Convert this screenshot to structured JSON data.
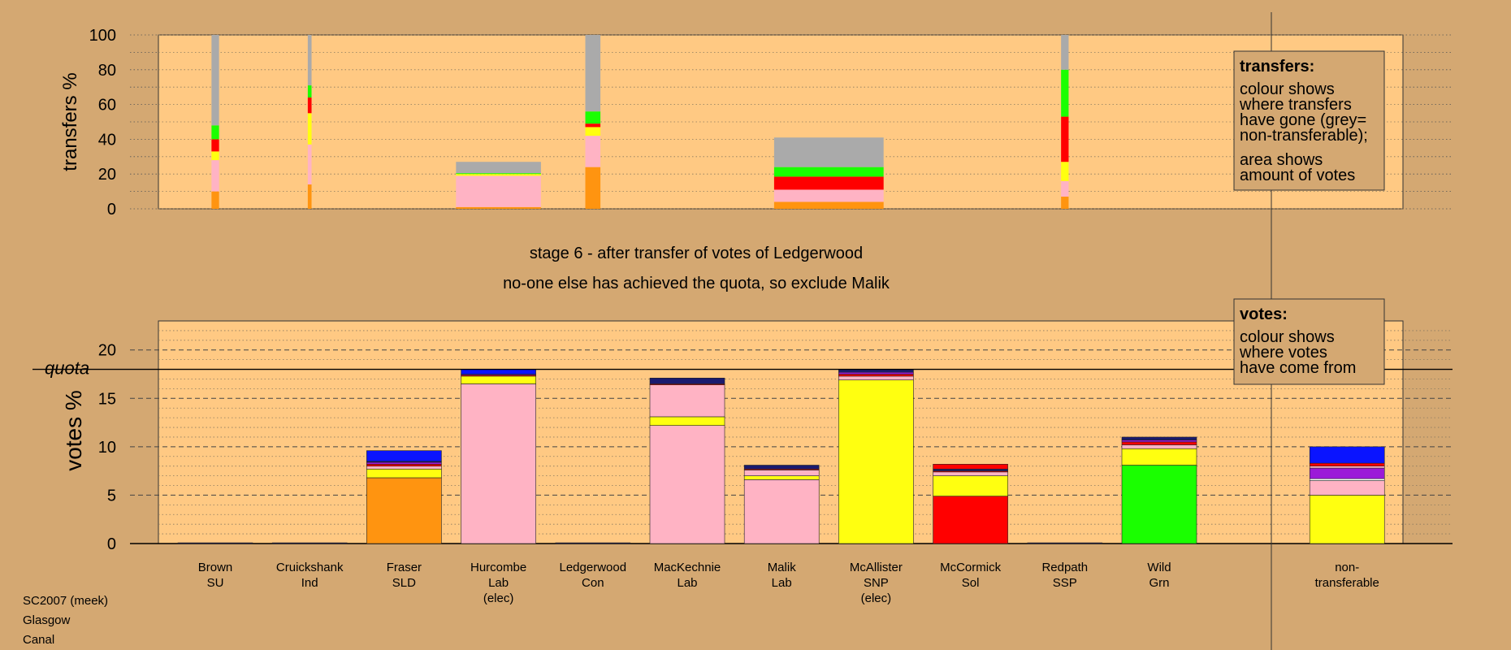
{
  "colors": {
    "background": "#d4a872",
    "panel": "#ffc983",
    "orange": "#ff9410",
    "pink": "#ffb3c4",
    "yellow": "#ffff10",
    "red": "#ff0000",
    "green": "#1aff00",
    "grey": "#aaaaaa",
    "navy": "#1a1a6e",
    "blue": "#0a14ff",
    "purple": "#9b1ad8",
    "white": "#ffffff"
  },
  "captions": {
    "stage": "stage 6 - after transfer of votes of Ledgerwood",
    "status": "no-one else has achieved the quota, so exclude Malik"
  },
  "legends": {
    "transfers": {
      "title": "transfers:",
      "line1": "colour shows",
      "line2": "where transfers",
      "line3": "have gone (grey=",
      "line4": "non-transferable);",
      "line5": "area shows",
      "line6": "amount of votes"
    },
    "votes": {
      "title": "votes:",
      "line1": "colour shows",
      "line2": "where votes",
      "line3": "have come from"
    }
  },
  "footer": [
    "SC2007 (meek)",
    "Glasgow",
    "Canal"
  ],
  "chart_data": [
    {
      "type": "bar",
      "ylabel": "transfers %",
      "ylim": [
        0,
        100
      ],
      "yticks": [
        0,
        20,
        40,
        60,
        80,
        100
      ],
      "grid": "dotted",
      "bars": [
        {
          "x": 1,
          "width": 0.08,
          "segments": [
            {
              "color": "orange",
              "value": 10
            },
            {
              "color": "pink",
              "value": 18
            },
            {
              "color": "yellow",
              "value": 5
            },
            {
              "color": "red",
              "value": 7
            },
            {
              "color": "green",
              "value": 8
            },
            {
              "color": "grey",
              "value": 52
            }
          ]
        },
        {
          "x": 2,
          "width": 0.04,
          "segments": [
            {
              "color": "orange",
              "value": 14
            },
            {
              "color": "pink",
              "value": 23
            },
            {
              "color": "yellow",
              "value": 18
            },
            {
              "color": "red",
              "value": 9
            },
            {
              "color": "green",
              "value": 7
            },
            {
              "color": "grey",
              "value": 29
            }
          ]
        },
        {
          "x": 4,
          "width": 0.9,
          "segments": [
            {
              "color": "orange",
              "value": 1
            },
            {
              "color": "pink",
              "value": 18
            },
            {
              "color": "yellow",
              "value": 1
            },
            {
              "color": "green",
              "value": 0.5
            },
            {
              "color": "grey",
              "value": 6.5
            }
          ]
        },
        {
          "x": 5,
          "width": 0.16,
          "segments": [
            {
              "color": "orange",
              "value": 24
            },
            {
              "color": "pink",
              "value": 18
            },
            {
              "color": "yellow",
              "value": 5
            },
            {
              "color": "red",
              "value": 2
            },
            {
              "color": "green",
              "value": 7
            },
            {
              "color": "grey",
              "value": 44
            }
          ]
        },
        {
          "x": 7.5,
          "width": 1.16,
          "segments": [
            {
              "color": "orange",
              "value": 4
            },
            {
              "color": "pink",
              "value": 7
            },
            {
              "color": "red",
              "value": 7.5
            },
            {
              "color": "green",
              "value": 5.5
            },
            {
              "color": "grey",
              "value": 17
            }
          ]
        },
        {
          "x": 10,
          "width": 0.08,
          "segments": [
            {
              "color": "orange",
              "value": 7
            },
            {
              "color": "pink",
              "value": 9
            },
            {
              "color": "yellow",
              "value": 11
            },
            {
              "color": "red",
              "value": 26
            },
            {
              "color": "green",
              "value": 27
            },
            {
              "color": "grey",
              "value": 20
            }
          ]
        }
      ]
    },
    {
      "type": "bar",
      "ylabel": "votes %",
      "ylim": [
        0,
        23
      ],
      "yticks": [
        0,
        5,
        10,
        15,
        20
      ],
      "grid": "dashed",
      "quota": {
        "value": 18,
        "label": "quota"
      },
      "categories": [
        {
          "name": "Brown",
          "party": "SU",
          "note": ""
        },
        {
          "name": "Cruickshank",
          "party": "Ind",
          "note": ""
        },
        {
          "name": "Fraser",
          "party": "SLD",
          "note": ""
        },
        {
          "name": "Hurcombe",
          "party": "Lab",
          "note": "(elec)"
        },
        {
          "name": "Ledgerwood",
          "party": "Con",
          "note": ""
        },
        {
          "name": "MacKechnie",
          "party": "Lab",
          "note": ""
        },
        {
          "name": "Malik",
          "party": "Lab",
          "note": ""
        },
        {
          "name": "McAllister",
          "party": "SNP",
          "note": "(elec)"
        },
        {
          "name": "McCormick",
          "party": "Sol",
          "note": ""
        },
        {
          "name": "Redpath",
          "party": "SSP",
          "note": ""
        },
        {
          "name": "Wild",
          "party": "Grn",
          "note": ""
        },
        {
          "name": "non-",
          "party": "transferable",
          "note": ""
        }
      ],
      "positions": [
        1,
        2,
        3,
        4,
        5,
        6,
        7,
        8,
        9,
        10,
        11,
        12.99
      ],
      "stacks": [
        [
          {
            "color": "navy",
            "value": 0.08
          }
        ],
        [
          {
            "color": "navy",
            "value": 0.08
          }
        ],
        [
          {
            "color": "orange",
            "value": 6.8
          },
          {
            "color": "yellow",
            "value": 0.9
          },
          {
            "color": "pink",
            "value": 0.3
          },
          {
            "color": "red",
            "value": 0.2
          },
          {
            "color": "purple",
            "value": 0.2
          },
          {
            "color": "navy",
            "value": 0.1
          },
          {
            "color": "blue",
            "value": 1.1
          }
        ],
        [
          {
            "color": "pink",
            "value": 16.5
          },
          {
            "color": "yellow",
            "value": 0.8
          },
          {
            "color": "red",
            "value": 0.1
          },
          {
            "color": "purple",
            "value": 0.1
          },
          {
            "color": "blue",
            "value": 0.5
          }
        ],
        [
          {
            "color": "navy",
            "value": 0.08
          }
        ],
        [
          {
            "color": "pink",
            "value": 12.2
          },
          {
            "color": "yellow",
            "value": 0.9
          },
          {
            "color": "pink",
            "value": 3.3
          },
          {
            "color": "red",
            "value": 0.1
          },
          {
            "color": "navy",
            "value": 0.6
          }
        ],
        [
          {
            "color": "pink",
            "value": 6.6
          },
          {
            "color": "yellow",
            "value": 0.4
          },
          {
            "color": "pink",
            "value": 0.6
          },
          {
            "color": "red",
            "value": 0.1
          },
          {
            "color": "navy",
            "value": 0.4
          }
        ],
        [
          {
            "color": "yellow",
            "value": 16.9
          },
          {
            "color": "pink",
            "value": 0.4
          },
          {
            "color": "red",
            "value": 0.2
          },
          {
            "color": "purple",
            "value": 0.2
          },
          {
            "color": "navy",
            "value": 0.3
          }
        ],
        [
          {
            "color": "red",
            "value": 4.9
          },
          {
            "color": "yellow",
            "value": 2.1
          },
          {
            "color": "pink",
            "value": 0.4
          },
          {
            "color": "red",
            "value": 0.1
          },
          {
            "color": "navy",
            "value": 0.2
          },
          {
            "color": "red",
            "value": 0.5
          }
        ],
        [
          {
            "color": "navy",
            "value": 0.08
          }
        ],
        [
          {
            "color": "green",
            "value": 8.1
          },
          {
            "color": "yellow",
            "value": 1.7
          },
          {
            "color": "pink",
            "value": 0.4
          },
          {
            "color": "red",
            "value": 0.3
          },
          {
            "color": "purple",
            "value": 0.2
          },
          {
            "color": "navy",
            "value": 0.3
          }
        ],
        [
          {
            "color": "yellow",
            "value": 5.0
          },
          {
            "color": "pink",
            "value": 1.5
          },
          {
            "color": "white",
            "value": 0.2
          },
          {
            "color": "purple",
            "value": 1.1
          },
          {
            "color": "pink",
            "value": 0.2
          },
          {
            "color": "red",
            "value": 0.3
          },
          {
            "color": "blue",
            "value": 1.7
          }
        ]
      ]
    }
  ]
}
